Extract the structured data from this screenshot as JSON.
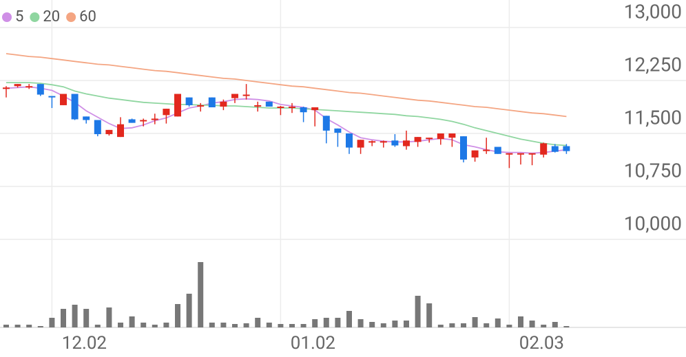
{
  "chart_data": {
    "type": "candlestick",
    "categories": [
      null,
      null,
      null,
      null,
      "12.02",
      null,
      null,
      null,
      null,
      null,
      null,
      null,
      null,
      null,
      null,
      null,
      null,
      null,
      null,
      null,
      null,
      null,
      null,
      null,
      "01.02",
      null,
      null,
      null,
      null,
      null,
      null,
      null,
      null,
      null,
      null,
      null,
      null,
      null,
      null,
      null,
      null,
      null,
      null,
      null,
      "02.03",
      null,
      null,
      null,
      null,
      null
    ],
    "open": [
      12130,
      12170,
      12160,
      12200,
      12030,
      11900,
      12060,
      11740,
      11690,
      11490,
      11450,
      11700,
      11680,
      11690,
      11760,
      11740,
      12010,
      11890,
      12010,
      11880,
      12000,
      12040,
      11890,
      11950,
      11870,
      11870,
      11870,
      11830,
      11750,
      11570,
      11500,
      11300,
      11380,
      11380,
      11400,
      11320,
      11380,
      11430,
      11420,
      11440,
      11460,
      11160,
      11260,
      11310,
      11210,
      11210,
      11210,
      11200,
      11320,
      11320
    ],
    "high": [
      12170,
      12200,
      12200,
      12200,
      12030,
      12060,
      12060,
      11740,
      11690,
      11550,
      11730,
      11710,
      11710,
      11780,
      11850,
      12060,
      12010,
      11930,
      12010,
      11980,
      12060,
      12200,
      11950,
      11950,
      11890,
      11930,
      11880,
      11870,
      11750,
      11570,
      11500,
      11410,
      11400,
      11400,
      11490,
      11540,
      11450,
      11440,
      11500,
      11500,
      11460,
      11260,
      11440,
      11310,
      11220,
      11220,
      11220,
      11370,
      11350,
      11350
    ],
    "low": [
      12010,
      12150,
      12130,
      12030,
      11860,
      11900,
      11690,
      11640,
      11460,
      11470,
      11450,
      11650,
      11600,
      11630,
      11640,
      11740,
      11880,
      11810,
      11870,
      11830,
      11930,
      11980,
      11810,
      11880,
      11760,
      11790,
      11660,
      11600,
      11360,
      11310,
      11210,
      11210,
      11320,
      11300,
      11310,
      11270,
      11310,
      11370,
      11340,
      11310,
      11090,
      11100,
      11210,
      11210,
      11010,
      11060,
      11050,
      11160,
      11230,
      11210
    ],
    "close": [
      12150,
      12200,
      12170,
      12050,
      12010,
      12060,
      11700,
      11690,
      11490,
      11550,
      11630,
      11650,
      11690,
      11710,
      11850,
      12060,
      11900,
      11900,
      11870,
      11950,
      12060,
      12050,
      11900,
      11880,
      11880,
      11880,
      11800,
      11870,
      11540,
      11510,
      11300,
      11410,
      11390,
      11390,
      11330,
      11400,
      11450,
      11440,
      11500,
      11500,
      11130,
      11260,
      11270,
      11210,
      11220,
      11220,
      11220,
      11360,
      11240,
      11250
    ],
    "volume": [
      4,
      4,
      4,
      2,
      14,
      27,
      33,
      27,
      4,
      29,
      7,
      16,
      7,
      4,
      7,
      34,
      49,
      95,
      7,
      7,
      5,
      6,
      14,
      7,
      5,
      5,
      5,
      12,
      14,
      14,
      24,
      12,
      8,
      6,
      10,
      10,
      46,
      35,
      4,
      6,
      6,
      15,
      6,
      13,
      4,
      16,
      10,
      4,
      8,
      2
    ],
    "vlim": [
      0,
      100
    ],
    "series": [
      {
        "name": "5",
        "color": "#cf8fe6",
        "values": [
          12140,
          12150,
          12160,
          12140,
          12110,
          12030,
          11940,
          11820,
          11730,
          11640,
          11570,
          11580,
          11620,
          11680,
          11720,
          11790,
          11860,
          11890,
          11930,
          11950,
          11980,
          11990,
          11980,
          11960,
          11910,
          11890,
          11870,
          11830,
          11710,
          11620,
          11520,
          11440,
          11410,
          11390,
          11380,
          11380,
          11390,
          11410,
          11430,
          11410,
          11340,
          11310,
          11270,
          11240,
          11230,
          11230,
          11220,
          11230,
          11250,
          11270
        ]
      },
      {
        "name": "20",
        "color": "#8fd6a0",
        "values": [
          12220,
          12220,
          12220,
          12210,
          12190,
          12160,
          12100,
          12060,
          12030,
          12000,
          11980,
          11960,
          11940,
          11930,
          11920,
          11910,
          11910,
          11900,
          11900,
          11890,
          11890,
          11880,
          11870,
          11860,
          11860,
          11860,
          11850,
          11840,
          11830,
          11820,
          11810,
          11800,
          11790,
          11780,
          11770,
          11750,
          11740,
          11720,
          11700,
          11670,
          11630,
          11580,
          11540,
          11500,
          11460,
          11420,
          11390,
          11360,
          11340,
          11330
        ]
      },
      {
        "name": "60",
        "color": "#f4a582",
        "values": [
          12630,
          12610,
          12590,
          12580,
          12560,
          12540,
          12520,
          12500,
          12480,
          12470,
          12450,
          12430,
          12410,
          12390,
          12380,
          12360,
          12340,
          12320,
          12300,
          12280,
          12270,
          12250,
          12230,
          12210,
          12190,
          12170,
          12160,
          12140,
          12120,
          12100,
          12080,
          12070,
          12050,
          12030,
          12010,
          11990,
          11970,
          11960,
          11940,
          11920,
          11900,
          11880,
          11870,
          11850,
          11830,
          11810,
          11790,
          11780,
          11760,
          11740
        ]
      }
    ],
    "up_color": "#e2281e",
    "down_color": "#1d78e6",
    "volume_color": "#777777",
    "ylim": [
      10000,
      13000
    ],
    "yticks": [
      {
        "value": 10000,
        "label": "10,000"
      },
      {
        "value": 10750,
        "label": "10,750"
      },
      {
        "value": 11500,
        "label": "11,500"
      },
      {
        "value": 12250,
        "label": "12,250"
      },
      {
        "value": 13000,
        "label": "13,000"
      }
    ],
    "grid": true
  }
}
